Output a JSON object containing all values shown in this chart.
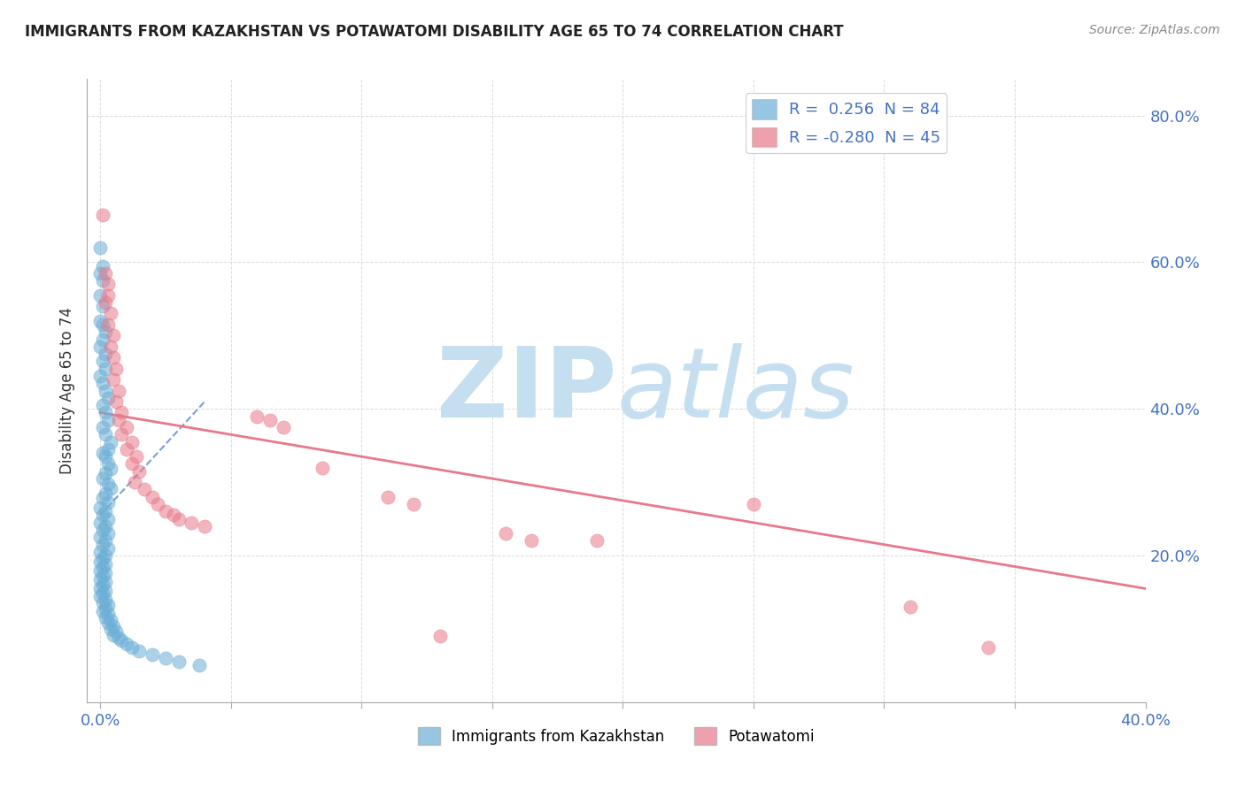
{
  "title": "IMMIGRANTS FROM KAZAKHSTAN VS POTAWATOMI DISABILITY AGE 65 TO 74 CORRELATION CHART",
  "source": "Source: ZipAtlas.com",
  "legend_label1": "Immigrants from Kazakhstan",
  "legend_label2": "Potawatomi",
  "ylabel_label": "Disability Age 65 to 74",
  "r1": 0.256,
  "n1": 84,
  "r2": -0.28,
  "n2": 45,
  "blue_color": "#6baed6",
  "pink_color": "#e8798a",
  "blue_scatter": [
    [
      0.0,
      0.62
    ],
    [
      0.001,
      0.595
    ],
    [
      0.0,
      0.585
    ],
    [
      0.001,
      0.575
    ],
    [
      0.0,
      0.555
    ],
    [
      0.001,
      0.54
    ],
    [
      0.0,
      0.52
    ],
    [
      0.001,
      0.515
    ],
    [
      0.002,
      0.505
    ],
    [
      0.001,
      0.495
    ],
    [
      0.0,
      0.485
    ],
    [
      0.002,
      0.475
    ],
    [
      0.001,
      0.465
    ],
    [
      0.002,
      0.455
    ],
    [
      0.0,
      0.445
    ],
    [
      0.001,
      0.435
    ],
    [
      0.002,
      0.425
    ],
    [
      0.003,
      0.415
    ],
    [
      0.001,
      0.405
    ],
    [
      0.002,
      0.395
    ],
    [
      0.003,
      0.385
    ],
    [
      0.001,
      0.375
    ],
    [
      0.002,
      0.365
    ],
    [
      0.004,
      0.355
    ],
    [
      0.003,
      0.345
    ],
    [
      0.001,
      0.34
    ],
    [
      0.002,
      0.335
    ],
    [
      0.003,
      0.325
    ],
    [
      0.004,
      0.318
    ],
    [
      0.002,
      0.312
    ],
    [
      0.001,
      0.305
    ],
    [
      0.003,
      0.298
    ],
    [
      0.004,
      0.292
    ],
    [
      0.002,
      0.285
    ],
    [
      0.001,
      0.278
    ],
    [
      0.003,
      0.272
    ],
    [
      0.0,
      0.265
    ],
    [
      0.002,
      0.26
    ],
    [
      0.001,
      0.255
    ],
    [
      0.003,
      0.25
    ],
    [
      0.0,
      0.245
    ],
    [
      0.002,
      0.24
    ],
    [
      0.001,
      0.235
    ],
    [
      0.003,
      0.23
    ],
    [
      0.0,
      0.225
    ],
    [
      0.002,
      0.22
    ],
    [
      0.001,
      0.215
    ],
    [
      0.003,
      0.21
    ],
    [
      0.0,
      0.205
    ],
    [
      0.002,
      0.2
    ],
    [
      0.001,
      0.196
    ],
    [
      0.0,
      0.192
    ],
    [
      0.002,
      0.188
    ],
    [
      0.001,
      0.184
    ],
    [
      0.0,
      0.18
    ],
    [
      0.002,
      0.176
    ],
    [
      0.001,
      0.172
    ],
    [
      0.0,
      0.168
    ],
    [
      0.002,
      0.164
    ],
    [
      0.001,
      0.16
    ],
    [
      0.0,
      0.156
    ],
    [
      0.002,
      0.152
    ],
    [
      0.001,
      0.148
    ],
    [
      0.0,
      0.144
    ],
    [
      0.002,
      0.14
    ],
    [
      0.001,
      0.136
    ],
    [
      0.003,
      0.132
    ],
    [
      0.002,
      0.128
    ],
    [
      0.001,
      0.124
    ],
    [
      0.003,
      0.12
    ],
    [
      0.002,
      0.116
    ],
    [
      0.004,
      0.112
    ],
    [
      0.003,
      0.108
    ],
    [
      0.005,
      0.104
    ],
    [
      0.004,
      0.1
    ],
    [
      0.006,
      0.096
    ],
    [
      0.005,
      0.092
    ],
    [
      0.007,
      0.088
    ],
    [
      0.008,
      0.084
    ],
    [
      0.01,
      0.08
    ],
    [
      0.012,
      0.075
    ],
    [
      0.015,
      0.07
    ],
    [
      0.02,
      0.065
    ],
    [
      0.025,
      0.06
    ],
    [
      0.03,
      0.055
    ],
    [
      0.038,
      0.05
    ]
  ],
  "pink_scatter": [
    [
      0.001,
      0.665
    ],
    [
      0.002,
      0.585
    ],
    [
      0.003,
      0.57
    ],
    [
      0.003,
      0.555
    ],
    [
      0.002,
      0.545
    ],
    [
      0.004,
      0.53
    ],
    [
      0.003,
      0.515
    ],
    [
      0.005,
      0.5
    ],
    [
      0.004,
      0.485
    ],
    [
      0.005,
      0.47
    ],
    [
      0.006,
      0.455
    ],
    [
      0.005,
      0.44
    ],
    [
      0.007,
      0.425
    ],
    [
      0.006,
      0.41
    ],
    [
      0.008,
      0.395
    ],
    [
      0.007,
      0.385
    ],
    [
      0.01,
      0.375
    ],
    [
      0.008,
      0.365
    ],
    [
      0.012,
      0.355
    ],
    [
      0.01,
      0.345
    ],
    [
      0.014,
      0.335
    ],
    [
      0.012,
      0.325
    ],
    [
      0.015,
      0.315
    ],
    [
      0.013,
      0.3
    ],
    [
      0.017,
      0.29
    ],
    [
      0.02,
      0.28
    ],
    [
      0.022,
      0.27
    ],
    [
      0.025,
      0.26
    ],
    [
      0.028,
      0.255
    ],
    [
      0.03,
      0.25
    ],
    [
      0.035,
      0.245
    ],
    [
      0.04,
      0.24
    ],
    [
      0.06,
      0.39
    ],
    [
      0.065,
      0.385
    ],
    [
      0.07,
      0.375
    ],
    [
      0.085,
      0.32
    ],
    [
      0.11,
      0.28
    ],
    [
      0.12,
      0.27
    ],
    [
      0.155,
      0.23
    ],
    [
      0.165,
      0.22
    ],
    [
      0.19,
      0.22
    ],
    [
      0.25,
      0.27
    ],
    [
      0.31,
      0.13
    ],
    [
      0.13,
      0.09
    ],
    [
      0.34,
      0.075
    ]
  ],
  "xlim": [
    -0.005,
    0.4
  ],
  "ylim": [
    0.0,
    0.85
  ],
  "watermark_zip": "ZIP",
  "watermark_atlas": "atlas",
  "watermark_color": "#c5dff0",
  "grid_color": "#cccccc",
  "background_color": "#ffffff",
  "blue_trend_x": [
    0.0,
    0.04
  ],
  "blue_trend_y": [
    0.255,
    0.41
  ],
  "pink_trend_x": [
    0.0,
    0.4
  ],
  "pink_trend_y": [
    0.395,
    0.155
  ],
  "xticks": [
    0.0,
    0.05,
    0.1,
    0.15,
    0.2,
    0.25,
    0.3,
    0.35,
    0.4
  ],
  "yticks": [
    0.0,
    0.2,
    0.4,
    0.6,
    0.8
  ]
}
